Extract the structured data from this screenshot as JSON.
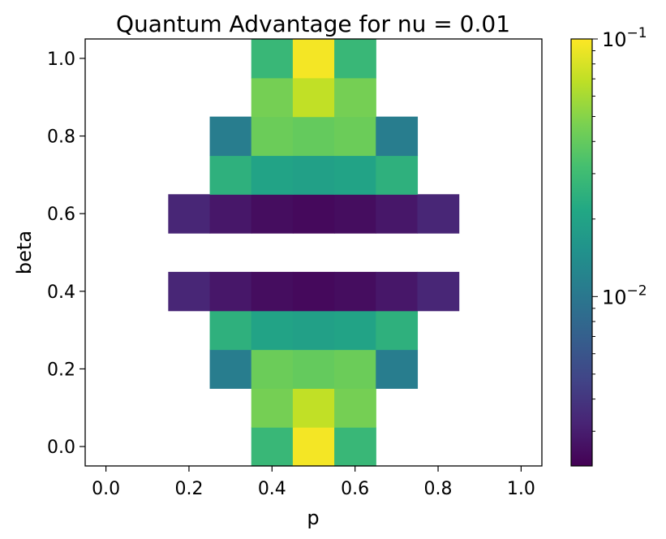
{
  "chart_data": {
    "type": "heatmap",
    "title": "Quantum Advantage for nu = 0.01",
    "xlabel": "p",
    "ylabel": "beta",
    "xlim": [
      -0.05,
      1.05
    ],
    "ylim": [
      -0.05,
      1.05
    ],
    "x_ticks": [
      "0.0",
      "0.2",
      "0.4",
      "0.6",
      "0.8",
      "1.0"
    ],
    "y_ticks": [
      "0.0",
      "0.2",
      "0.4",
      "0.6",
      "0.8",
      "1.0"
    ],
    "x": [
      0.0,
      0.1,
      0.2,
      0.3,
      0.4,
      0.5,
      0.6,
      0.7,
      0.8,
      0.9,
      1.0
    ],
    "y": [
      0.0,
      0.1,
      0.2,
      0.3,
      0.4,
      0.5,
      0.6,
      0.7,
      0.8,
      0.9,
      1.0
    ],
    "values": [
      [
        null,
        null,
        null,
        null,
        0.028,
        0.095,
        0.028,
        null,
        null,
        null,
        null
      ],
      [
        null,
        null,
        null,
        null,
        0.045,
        0.07,
        0.045,
        null,
        null,
        null,
        null
      ],
      [
        null,
        null,
        null,
        0.011,
        0.042,
        0.04,
        0.042,
        0.011,
        null,
        null,
        null
      ],
      [
        null,
        null,
        null,
        0.025,
        0.02,
        0.019,
        0.02,
        0.025,
        null,
        null,
        null
      ],
      [
        null,
        null,
        0.0033,
        0.0028,
        0.0025,
        0.0024,
        0.0025,
        0.0028,
        0.0033,
        null,
        null
      ],
      [
        null,
        null,
        null,
        null,
        null,
        null,
        null,
        null,
        null,
        null,
        null
      ],
      [
        null,
        null,
        0.0033,
        0.0028,
        0.0025,
        0.0024,
        0.0025,
        0.0028,
        0.0033,
        null,
        null
      ],
      [
        null,
        null,
        null,
        0.025,
        0.02,
        0.019,
        0.02,
        0.025,
        null,
        null,
        null
      ],
      [
        null,
        null,
        null,
        0.011,
        0.042,
        0.04,
        0.042,
        0.011,
        null,
        null,
        null
      ],
      [
        null,
        null,
        null,
        null,
        0.045,
        0.07,
        0.045,
        null,
        null,
        null,
        null
      ],
      [
        null,
        null,
        null,
        null,
        0.028,
        0.095,
        0.028,
        null,
        null,
        null,
        null
      ]
    ],
    "colorbar": {
      "scale": "log",
      "colormap": "viridis",
      "range": [
        0.0022,
        0.1
      ],
      "tick_values": [
        0.01,
        0.1
      ],
      "tick_labels": [
        {
          "base": "10",
          "exp": "−2"
        },
        {
          "base": "10",
          "exp": "−1"
        }
      ]
    }
  }
}
